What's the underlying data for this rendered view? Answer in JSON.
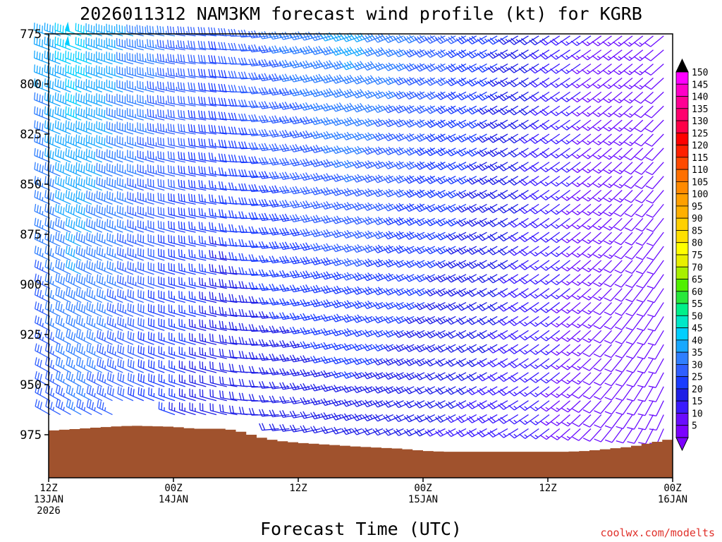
{
  "chart_data": {
    "type": "wind-barb-time-height",
    "title": "2026011312 NAM3KM forecast wind profile (kt) for KGRB",
    "xlabel": "Forecast Time (UTC)",
    "credit": "coolwx.com/modelts",
    "units": "kt",
    "x_hours_range": [
      0,
      60
    ],
    "y_pressure_range_hpa": [
      775,
      997
    ],
    "y_ticks": [
      775,
      800,
      825,
      850,
      875,
      900,
      925,
      950,
      975
    ],
    "y_tick_labels": [
      "775",
      "800",
      "825",
      "850",
      "875",
      "900",
      "925",
      "950",
      "975"
    ],
    "x_ticks": [
      {
        "hour": 0,
        "lines": [
          "12Z",
          "13JAN",
          "2026"
        ]
      },
      {
        "hour": 12,
        "lines": [
          "00Z",
          "14JAN"
        ]
      },
      {
        "hour": 24,
        "lines": [
          "12Z"
        ]
      },
      {
        "hour": 36,
        "lines": [
          "00Z",
          "15JAN"
        ]
      },
      {
        "hour": 48,
        "lines": [
          "12Z"
        ]
      },
      {
        "hour": 60,
        "lines": [
          "00Z",
          "16JAN"
        ]
      }
    ],
    "barb_levels_hpa": [
      776,
      783,
      790,
      797,
      804,
      811,
      818,
      825,
      832,
      839,
      846,
      853,
      860,
      867,
      874,
      881,
      888,
      895,
      902,
      909,
      916,
      923,
      930,
      937,
      944,
      951,
      958,
      965,
      972,
      979
    ],
    "surface_pressure_hpa": [
      {
        "hour": 0,
        "p": 973
      },
      {
        "hour": 3,
        "p": 972
      },
      {
        "hour": 6,
        "p": 971
      },
      {
        "hour": 8,
        "p": 970.5
      },
      {
        "hour": 12,
        "p": 971
      },
      {
        "hour": 14,
        "p": 972
      },
      {
        "hour": 17,
        "p": 972
      },
      {
        "hour": 19,
        "p": 974
      },
      {
        "hour": 20,
        "p": 976
      },
      {
        "hour": 22,
        "p": 978
      },
      {
        "hour": 24,
        "p": 979
      },
      {
        "hour": 27,
        "p": 980
      },
      {
        "hour": 30,
        "p": 981
      },
      {
        "hour": 34,
        "p": 982
      },
      {
        "hour": 36,
        "p": 983
      },
      {
        "hour": 38,
        "p": 983.5
      },
      {
        "hour": 44,
        "p": 983.5
      },
      {
        "hour": 50,
        "p": 983.5
      },
      {
        "hour": 52,
        "p": 983
      },
      {
        "hour": 54,
        "p": 982
      },
      {
        "hour": 56,
        "p": 981
      },
      {
        "hour": 58,
        "p": 979
      },
      {
        "hour": 60,
        "p": 977
      }
    ],
    "colorbar": {
      "levels": [
        5,
        10,
        15,
        20,
        25,
        30,
        35,
        40,
        45,
        50,
        55,
        60,
        65,
        70,
        75,
        80,
        85,
        90,
        95,
        100,
        105,
        110,
        115,
        120,
        125,
        130,
        135,
        140,
        145,
        150
      ],
      "colors": [
        "#7c00ff",
        "#6a0cff",
        "#3b1aff",
        "#1e1ee6",
        "#1a3cff",
        "#2f5fff",
        "#2f7fff",
        "#18a8ff",
        "#00cfff",
        "#00e8c8",
        "#00f08a",
        "#28e83c",
        "#50f000",
        "#a8f000",
        "#e8f000",
        "#ffff00",
        "#ffe000",
        "#ffd000",
        "#ffb000",
        "#ffa000",
        "#ff8a00",
        "#ff7000",
        "#ff4a00",
        "#ff2000",
        "#ff0000",
        "#ff0048",
        "#ff006e",
        "#ff0094",
        "#ff00c8",
        "#ff00ff"
      ],
      "labels": [
        "5",
        "10",
        "15",
        "20",
        "25",
        "30",
        "35",
        "40",
        "45",
        "50",
        "55",
        "60",
        "65",
        "70",
        "75",
        "80",
        "85",
        "90",
        "95",
        "100",
        "105",
        "110",
        "115",
        "120",
        "125",
        "130",
        "135",
        "140",
        "145",
        "150"
      ]
    },
    "terrain_color": "#a0522d",
    "wind_regime_keyframes": [
      {
        "hour": 0,
        "low_dir": 300,
        "low_spd": 30,
        "high_dir": 290,
        "high_spd": 42
      },
      {
        "hour": 3,
        "low_dir": 300,
        "low_spd": 35,
        "high_dir": 290,
        "high_spd": 48
      },
      {
        "hour": 8,
        "low_dir": 295,
        "low_spd": 30,
        "high_dir": 285,
        "high_spd": 40
      },
      {
        "hour": 12,
        "low_dir": 290,
        "low_spd": 25,
        "high_dir": 280,
        "high_spd": 35
      },
      {
        "hour": 17,
        "low_dir": 285,
        "low_spd": 20,
        "high_dir": 275,
        "high_spd": 30
      },
      {
        "hour": 22,
        "low_dir": 265,
        "low_spd": 20,
        "high_dir": 260,
        "high_spd": 35
      },
      {
        "hour": 30,
        "low_dir": 250,
        "low_spd": 22,
        "high_dir": 250,
        "high_spd": 42
      },
      {
        "hour": 36,
        "low_dir": 245,
        "low_spd": 20,
        "high_dir": 245,
        "high_spd": 35
      },
      {
        "hour": 44,
        "low_dir": 240,
        "low_spd": 18,
        "high_dir": 240,
        "high_spd": 25
      },
      {
        "hour": 52,
        "low_dir": 225,
        "low_spd": 12,
        "high_dir": 235,
        "high_spd": 15
      },
      {
        "hour": 60,
        "low_dir": 200,
        "low_spd": 10,
        "high_dir": 230,
        "high_spd": 12
      }
    ]
  }
}
